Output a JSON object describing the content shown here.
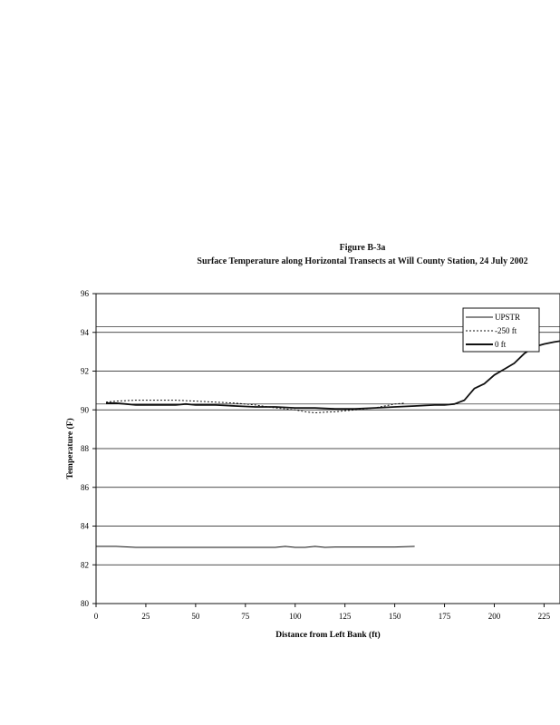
{
  "figure": {
    "title": "Figure B-3a",
    "subtitle": "Surface Temperature along Horizontal Transects at Will County Station, 24 July 2002"
  },
  "chart_data": {
    "type": "line",
    "title": "Figure B-3a",
    "subtitle": "Surface Temperature along Horizontal Transects at Will County Station, 24 July 2002",
    "xlabel": "Distance from Left Bank (ft)",
    "ylabel": "Temperature (F)",
    "xlim": [
      0,
      233
    ],
    "ylim": [
      80,
      96
    ],
    "xticks": [
      0,
      25,
      50,
      75,
      100,
      125,
      150,
      175,
      200,
      225
    ],
    "yticks": [
      80,
      82,
      84,
      86,
      88,
      90,
      92,
      94,
      96
    ],
    "grid": true,
    "legend_position": "top-right",
    "series": [
      {
        "name": "UPSTR",
        "style": "solid-thin",
        "color": "#111111",
        "x": [
          0,
          10,
          20,
          30,
          40,
          50,
          60,
          70,
          80,
          90,
          95,
          100,
          105,
          110,
          115,
          120,
          130,
          140,
          150,
          160
        ],
        "y": [
          82.95,
          82.95,
          82.9,
          82.9,
          82.9,
          82.9,
          82.9,
          82.9,
          82.9,
          82.9,
          82.95,
          82.9,
          82.9,
          82.95,
          82.9,
          82.92,
          82.92,
          82.92,
          82.92,
          82.95
        ]
      },
      {
        "name": "-250 ft",
        "style": "dashed",
        "color": "#111111",
        "x": [
          5,
          10,
          20,
          30,
          40,
          50,
          60,
          70,
          80,
          90,
          100,
          105,
          110,
          115,
          120,
          125,
          130,
          135,
          140,
          145,
          150,
          155
        ],
        "y": [
          90.4,
          90.45,
          90.5,
          90.5,
          90.5,
          90.45,
          90.4,
          90.35,
          90.25,
          90.1,
          90.0,
          89.9,
          89.85,
          89.88,
          89.9,
          89.95,
          90.0,
          90.05,
          90.1,
          90.2,
          90.3,
          90.35
        ]
      },
      {
        "name": "0 ft",
        "style": "solid-thick",
        "color": "#111111",
        "x": [
          5,
          10,
          15,
          20,
          30,
          40,
          45,
          50,
          60,
          70,
          80,
          90,
          100,
          110,
          120,
          130,
          140,
          150,
          160,
          170,
          175,
          180,
          185,
          190,
          195,
          200,
          205,
          210,
          215,
          220,
          225,
          230,
          233
        ],
        "y": [
          90.35,
          90.35,
          90.3,
          90.25,
          90.25,
          90.25,
          90.3,
          90.25,
          90.25,
          90.2,
          90.15,
          90.15,
          90.1,
          90.1,
          90.05,
          90.05,
          90.1,
          90.15,
          90.2,
          90.25,
          90.25,
          90.3,
          90.5,
          91.1,
          91.35,
          91.8,
          92.1,
          92.4,
          92.9,
          93.25,
          93.4,
          93.5,
          93.55
        ]
      }
    ]
  }
}
